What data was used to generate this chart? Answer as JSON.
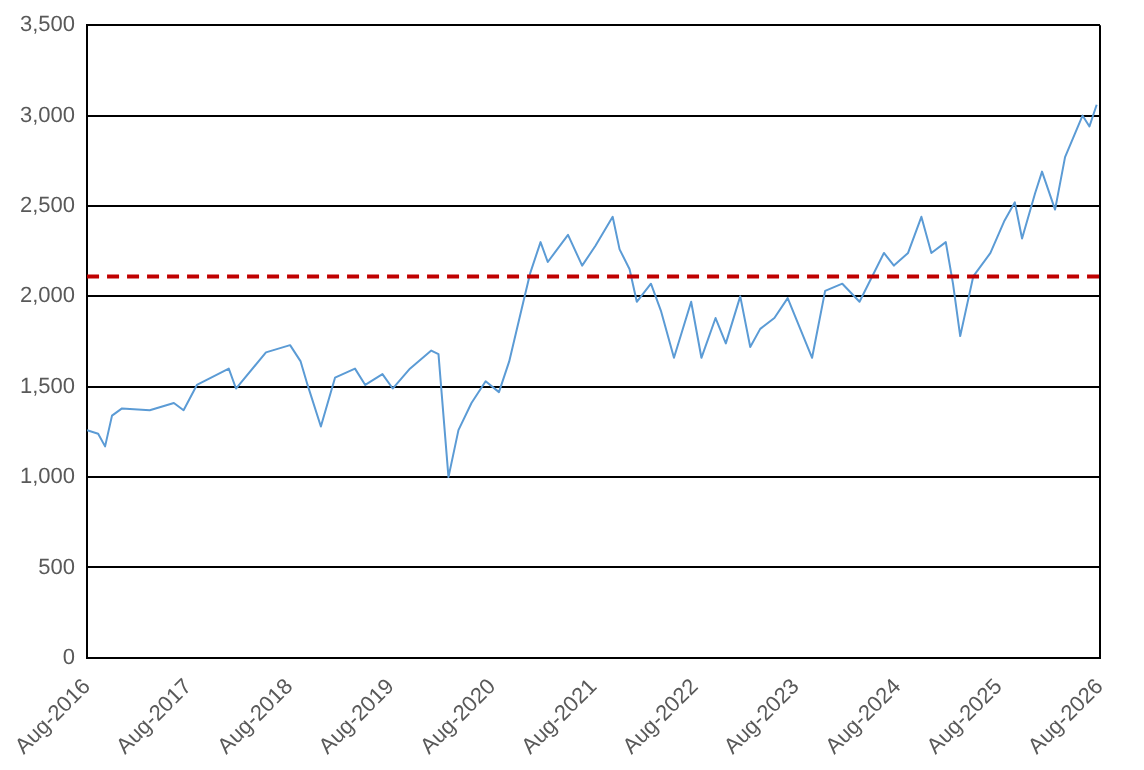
{
  "chart_data": {
    "type": "line",
    "x": [
      "2016-08-01",
      "2016-09-10",
      "2016-10-05",
      "2016-10-30",
      "2016-12-05",
      "2017-03-15",
      "2017-06-10",
      "2017-07-15",
      "2017-09-01",
      "2017-12-25",
      "2018-01-20",
      "2018-05-08",
      "2018-08-03",
      "2018-09-10",
      "2018-10-05",
      "2018-11-22",
      "2019-01-12",
      "2019-03-25",
      "2019-05-01",
      "2019-07-02",
      "2019-08-08",
      "2019-10-09",
      "2019-12-25",
      "2020-01-20",
      "2020-02-25",
      "2020-04-01",
      "2020-05-18",
      "2020-07-08",
      "2020-08-25",
      "2020-10-01",
      "2020-11-21",
      "2020-12-16",
      "2021-01-22",
      "2021-02-17",
      "2021-05-01",
      "2021-06-21",
      "2021-08-08",
      "2021-10-09",
      "2021-11-03",
      "2021-12-09",
      "2022-01-04",
      "2022-02-24",
      "2022-04-01",
      "2022-05-18",
      "2022-07-19",
      "2022-08-25",
      "2022-10-15",
      "2022-11-21",
      "2023-01-12",
      "2023-02-17",
      "2023-03-25",
      "2023-05-15",
      "2023-07-02",
      "2023-09-28",
      "2023-11-14",
      "2024-01-15",
      "2024-03-17",
      "2024-06-13",
      "2024-07-19",
      "2024-09-08",
      "2024-10-26",
      "2024-12-01",
      "2025-01-22",
      "2025-02-17",
      "2025-03-15",
      "2025-05-01",
      "2025-07-02",
      "2025-08-22",
      "2025-09-28",
      "2025-10-24",
      "2025-12-10",
      "2026-01-04",
      "2026-02-20",
      "2026-03-28",
      "2026-05-30",
      "2026-06-24",
      "2026-07-20"
    ],
    "series": [
      {
        "color": "#5b9bd5",
        "values": [
          1260,
          1240,
          1170,
          1340,
          1380,
          1370,
          1410,
          1370,
          1510,
          1600,
          1490,
          1690,
          1730,
          1640,
          1510,
          1280,
          1550,
          1600,
          1510,
          1570,
          1490,
          1600,
          1700,
          1680,
          1000,
          1260,
          1410,
          1530,
          1470,
          1640,
          1970,
          2130,
          2300,
          2190,
          2340,
          2170,
          2280,
          2440,
          2260,
          2150,
          1970,
          2070,
          1920,
          1660,
          1970,
          1660,
          1880,
          1740,
          2000,
          1720,
          1820,
          1880,
          1990,
          1660,
          2030,
          2070,
          1970,
          2240,
          2170,
          2240,
          2440,
          2240,
          2300,
          2070,
          1780,
          2110,
          2240,
          2420,
          2520,
          2320,
          2570,
          2690,
          2480,
          2770,
          3000,
          2940,
          3060
        ]
      }
    ],
    "xlim": [
      "2016-08",
      "2026-08"
    ],
    "xticks": [
      {
        "value": "2016-08",
        "label": "Aug-2016"
      },
      {
        "value": "2017-08",
        "label": "Aug-2017"
      },
      {
        "value": "2018-08",
        "label": "Aug-2018"
      },
      {
        "value": "2019-08",
        "label": "Aug-2019"
      },
      {
        "value": "2020-08",
        "label": "Aug-2020"
      },
      {
        "value": "2021-08",
        "label": "Aug-2021"
      },
      {
        "value": "2022-08",
        "label": "Aug-2022"
      },
      {
        "value": "2023-08",
        "label": "Aug-2023"
      },
      {
        "value": "2024-08",
        "label": "Aug-2024"
      },
      {
        "value": "2025-08",
        "label": "Aug-2025"
      },
      {
        "value": "2026-08",
        "label": "Aug-2026"
      }
    ],
    "ylim": [
      0,
      3500
    ],
    "yticks": [
      {
        "value": 0,
        "label": "0"
      },
      {
        "value": 500,
        "label": "500"
      },
      {
        "value": 1000,
        "label": "1,000"
      },
      {
        "value": 1500,
        "label": "1,500"
      },
      {
        "value": 2000,
        "label": "2,000"
      },
      {
        "value": 2500,
        "label": "2,500"
      },
      {
        "value": 3000,
        "label": "3,000"
      },
      {
        "value": 3500,
        "label": "3,500"
      }
    ],
    "ref_lines": [
      {
        "axis": "y",
        "value": 2110,
        "color": "#c00000",
        "line_style": "dashed"
      }
    ],
    "grid": "y",
    "legend": false,
    "marker": "none",
    "line_style": "solid"
  }
}
